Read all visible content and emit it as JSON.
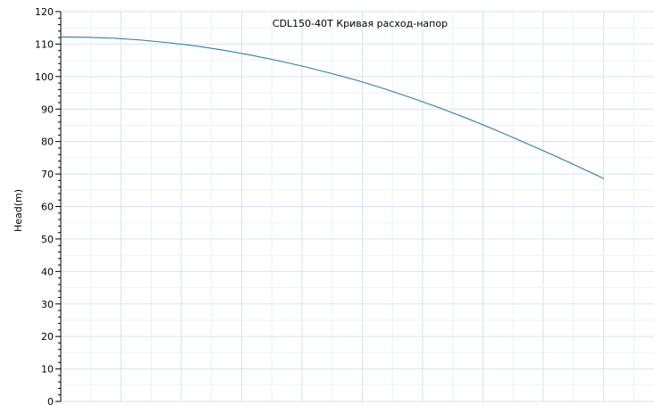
{
  "chart_data": {
    "type": "line",
    "title": "CDL150-40T Кривая расход-напор",
    "ylabel": "Head(m)",
    "xlabel": "",
    "ylim": [
      0,
      120
    ],
    "y_ticks": [
      "0",
      "10",
      "20",
      "30",
      "40",
      "50",
      "60",
      "70",
      "80",
      "90",
      "100",
      "110",
      "120"
    ],
    "grid": true,
    "series": [
      {
        "color": "#2b7f9e",
        "x": [
          0,
          10,
          20,
          30,
          40,
          50,
          60,
          70,
          80,
          90,
          100,
          110,
          120,
          130,
          140,
          150,
          160,
          170,
          180,
          190,
          200,
          210
        ],
        "values": [
          112.2,
          112.1,
          111.8,
          111.2,
          110.4,
          109.4,
          108.1,
          106.6,
          104.9,
          103.0,
          100.9,
          98.6,
          96.0,
          93.2,
          90.2,
          87.0,
          83.6,
          80.0,
          76.3,
          72.5,
          68.6,
          68.6
        ]
      }
    ],
    "x_count_visible": 20,
    "colors": {
      "grid_major": "#d6e3ee",
      "grid_minor": "#ecf2f7",
      "axis": "#000000"
    }
  }
}
